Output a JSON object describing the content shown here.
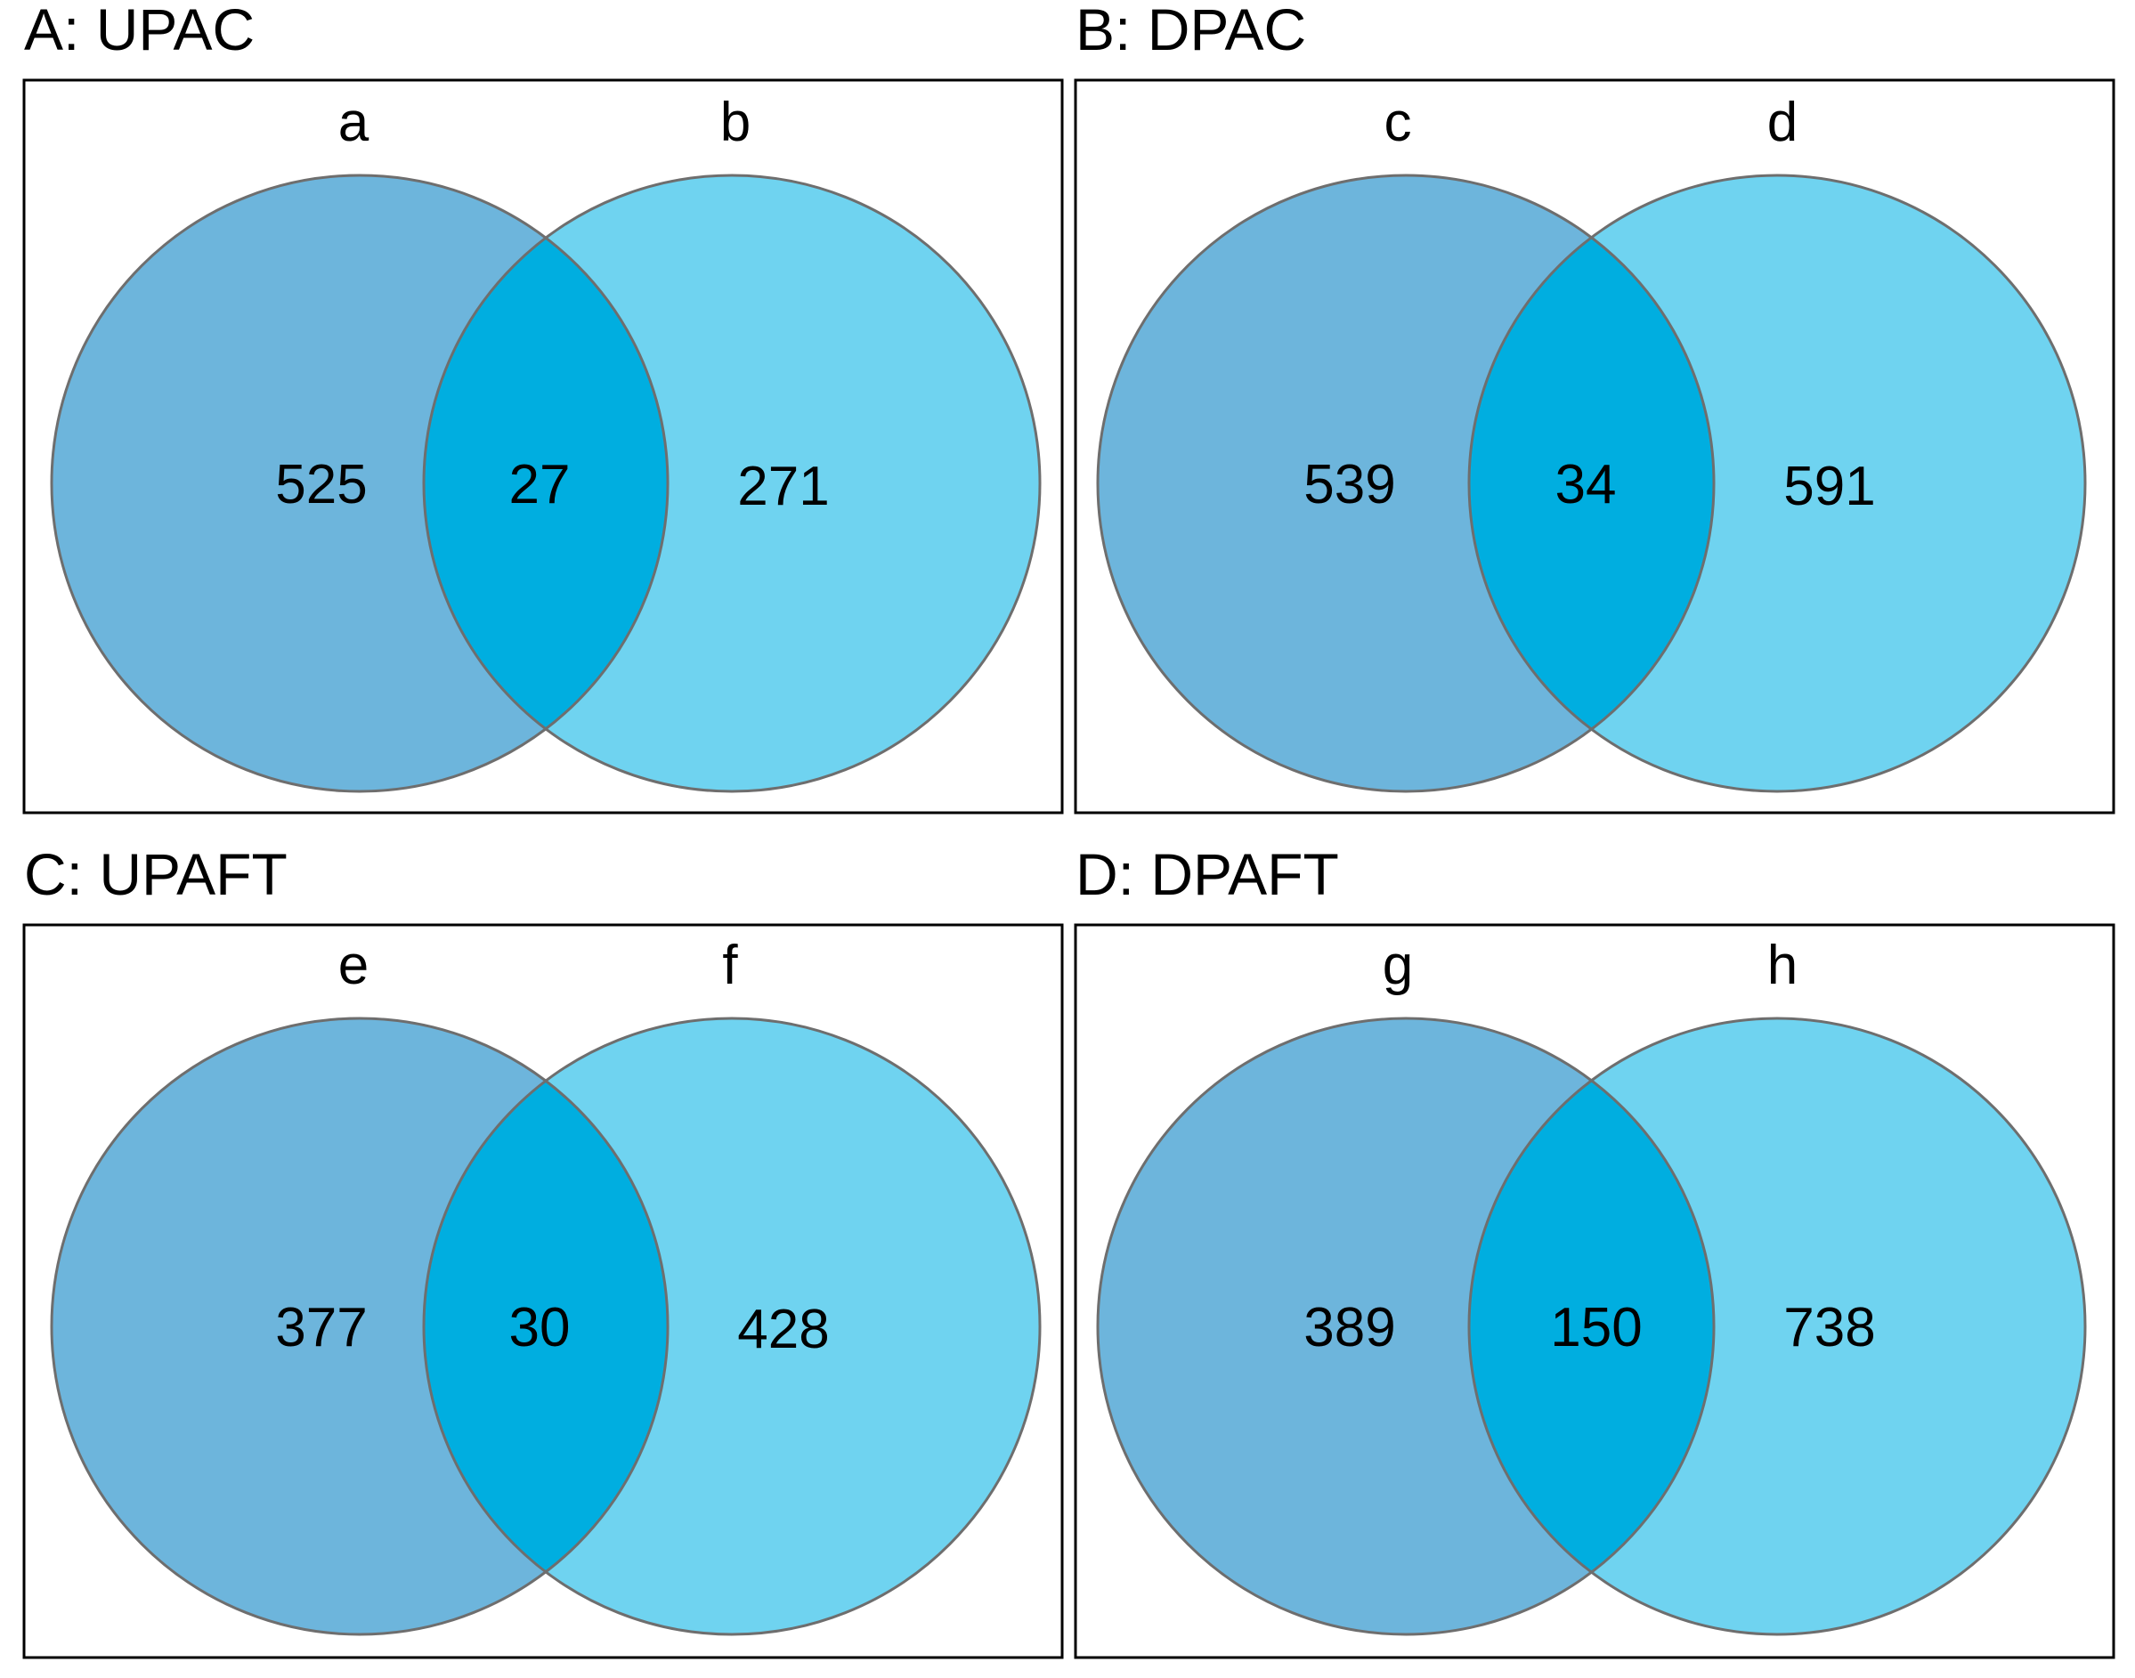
{
  "colors": {
    "left_set": "#6db5dc",
    "right_set": "#6fd3f0",
    "overlap": "#00aee0",
    "frame": "#000000",
    "circle_edge": "#6e6e6e"
  },
  "panels": [
    {
      "title": "A: UPAC",
      "left_label": "a",
      "right_label": "b",
      "left_only": "525",
      "both": "27",
      "right_only": "271"
    },
    {
      "title": "B: DPAC",
      "left_label": "c",
      "right_label": "d",
      "left_only": "539",
      "both": "34",
      "right_only": "591"
    },
    {
      "title": "C: UPAFT",
      "left_label": "e",
      "right_label": "f",
      "left_only": "377",
      "both": "30",
      "right_only": "428"
    },
    {
      "title": "D: DPAFT",
      "left_label": "g",
      "right_label": "h",
      "left_only": "389",
      "both": "150",
      "right_only": "738"
    }
  ]
}
